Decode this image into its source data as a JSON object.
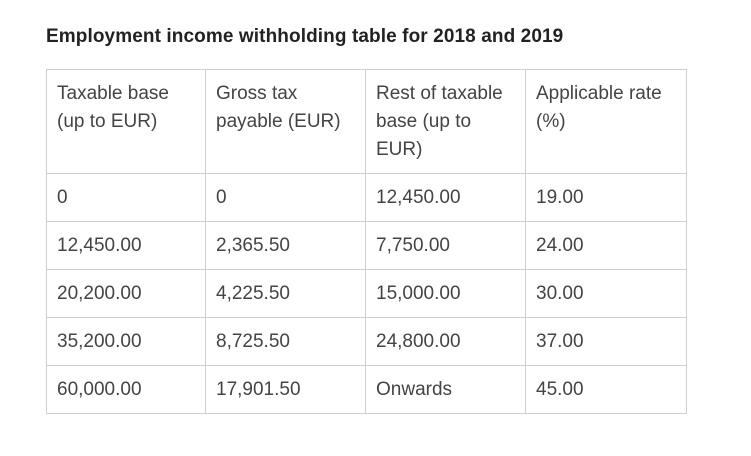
{
  "title": "Employment income withholding table for 2018 and 2019",
  "table": {
    "headers": [
      "Taxable base (up to EUR)",
      "Gross tax payable (EUR)",
      "Rest of taxable base (up to EUR)",
      "Applicable rate (%)"
    ],
    "rows": [
      [
        "0",
        "0",
        "12,450.00",
        "19.00"
      ],
      [
        "12,450.00",
        "2,365.50",
        "7,750.00",
        "24.00"
      ],
      [
        "20,200.00",
        "4,225.50",
        "15,000.00",
        "30.00"
      ],
      [
        "35,200.00",
        "8,725.50",
        "24,800.00",
        "37.00"
      ],
      [
        "60,000.00",
        "17,901.50",
        "Onwards",
        "45.00"
      ]
    ]
  }
}
